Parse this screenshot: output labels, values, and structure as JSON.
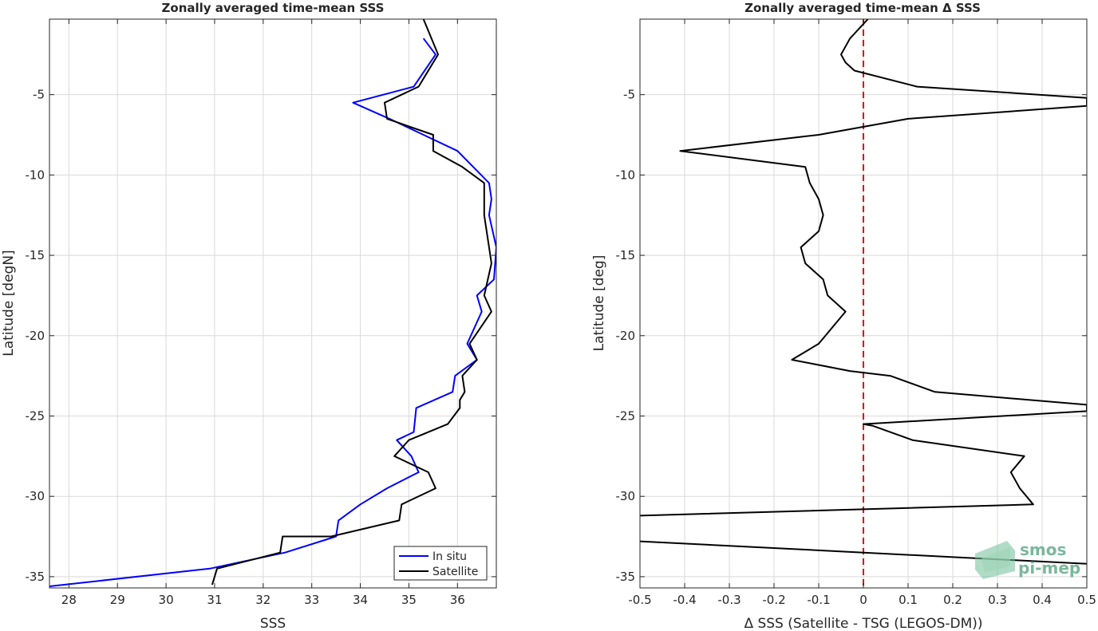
{
  "chart_data": [
    {
      "type": "line",
      "title": "Zonally averaged time-mean SSS",
      "xlabel": "SSS",
      "ylabel": "Latitude [degN]",
      "xlim": [
        27.6,
        36.8
      ],
      "ylim": [
        -35.7,
        -0.3
      ],
      "xticks": [
        28,
        29,
        30,
        31,
        32,
        33,
        34,
        35,
        36
      ],
      "xtick_labels": [
        "28",
        "29",
        "30",
        "31",
        "32",
        "33",
        "34",
        "35",
        "36"
      ],
      "yticks": [
        -35,
        -30,
        -25,
        -20,
        -15,
        -10,
        -5
      ],
      "ytick_labels": [
        "-35",
        "-30",
        "-25",
        "-20",
        "-15",
        "-10",
        "-5"
      ],
      "grid": true,
      "legend_position": "bottom-right",
      "series": [
        {
          "name": "In situ",
          "color": "#0000ff",
          "x": [
            35.3,
            35.55,
            35.1,
            33.85,
            34.6,
            35.3,
            36.0,
            36.65,
            36.7,
            36.65,
            36.8,
            36.75,
            36.4,
            36.5,
            36.2,
            36.4,
            35.95,
            35.9,
            35.15,
            35.1,
            34.75,
            35.05,
            35.2,
            34.55,
            34.0,
            33.55,
            33.5,
            32.45,
            30.9,
            27.6
          ],
          "y": [
            -1.5,
            -2.5,
            -4.5,
            -5.5,
            -6.5,
            -7.5,
            -8.5,
            -10.5,
            -11.5,
            -12.5,
            -14.5,
            -16.5,
            -17.5,
            -18.5,
            -20.5,
            -21.5,
            -22.5,
            -23.5,
            -24.5,
            -26.0,
            -26.5,
            -27.5,
            -28.5,
            -29.5,
            -30.5,
            -31.5,
            -32.5,
            -33.5,
            -34.5,
            -35.6
          ]
        },
        {
          "name": "Satellite",
          "color": "#000000",
          "x": [
            35.3,
            35.6,
            35.2,
            34.5,
            34.55,
            35.5,
            35.5,
            36.1,
            36.55,
            36.55,
            36.65,
            36.7,
            36.55,
            36.7,
            36.25,
            36.4,
            36.1,
            36.15,
            36.05,
            36.05,
            35.8,
            35.0,
            34.7,
            35.4,
            35.55,
            34.85,
            34.8,
            33.4,
            32.4,
            32.35,
            31.05,
            30.95
          ],
          "y": [
            -0.3,
            -2.5,
            -4.5,
            -5.5,
            -6.5,
            -7.5,
            -8.5,
            -9.5,
            -10.5,
            -12.5,
            -14.5,
            -15.5,
            -17.5,
            -18.5,
            -20.5,
            -21.5,
            -22.5,
            -23.5,
            -24.0,
            -24.5,
            -25.5,
            -26.5,
            -27.5,
            -28.5,
            -29.5,
            -30.5,
            -31.5,
            -32.5,
            -32.5,
            -33.5,
            -34.5,
            -35.5
          ]
        }
      ]
    },
    {
      "type": "line",
      "title": "Zonally averaged time-mean Δ SSS",
      "xlabel": "Δ SSS (Satellite - TSG (LEGOS-DM))",
      "ylabel": "Latitude [deg]",
      "xlim": [
        -0.5,
        0.5
      ],
      "ylim": [
        -35.7,
        -0.3
      ],
      "xticks": [
        -0.5,
        -0.4,
        -0.3,
        -0.2,
        -0.1,
        0,
        0.1,
        0.2,
        0.3,
        0.4,
        0.5
      ],
      "xtick_labels": [
        "-0.5",
        "-0.4",
        "-0.3",
        "-0.2",
        "-0.1",
        "0",
        "0.1",
        "0.2",
        "0.3",
        "0.4",
        "0.5"
      ],
      "yticks": [
        -35,
        -30,
        -25,
        -20,
        -15,
        -10,
        -5
      ],
      "ytick_labels": [
        "-35",
        "-30",
        "-25",
        "-20",
        "-15",
        "-10",
        "-5"
      ],
      "grid": true,
      "reference_line": {
        "x": 0,
        "color": "#e00000",
        "style": "dashed"
      },
      "series": [
        {
          "color": "#000000",
          "x": [
            0.01,
            -0.03,
            -0.05,
            -0.04,
            -0.02,
            0.12,
            0.5,
            0.5,
            0.1,
            -0.1,
            -0.41,
            -0.13,
            -0.12,
            -0.1,
            -0.09,
            -0.1,
            -0.14,
            -0.13,
            -0.09,
            -0.08,
            -0.04,
            -0.1,
            -0.16,
            -0.03,
            0.06,
            0.16,
            0.5,
            0.5,
            0.0,
            0.02,
            0.11,
            0.36,
            0.33,
            0.35,
            0.38,
            -0.5
          ],
          "y": [
            -0.3,
            -1.5,
            -2.5,
            -3.0,
            -3.5,
            -4.5,
            -5.2,
            -5.7,
            -6.5,
            -7.5,
            -8.5,
            -9.5,
            -10.5,
            -11.5,
            -12.5,
            -13.5,
            -14.5,
            -15.5,
            -16.5,
            -17.5,
            -18.5,
            -20.5,
            -21.5,
            -22.2,
            -22.5,
            -23.5,
            -24.3,
            -24.7,
            -25.5,
            -25.6,
            -26.5,
            -27.5,
            -28.5,
            -29.5,
            -30.5,
            -31.2
          ]
        },
        {
          "color": "#000000",
          "x": [
            -0.5,
            0.5
          ],
          "y": [
            -32.8,
            -34.2
          ]
        }
      ],
      "watermark": {
        "line1": "smos",
        "line2": "pi-mep"
      }
    }
  ]
}
